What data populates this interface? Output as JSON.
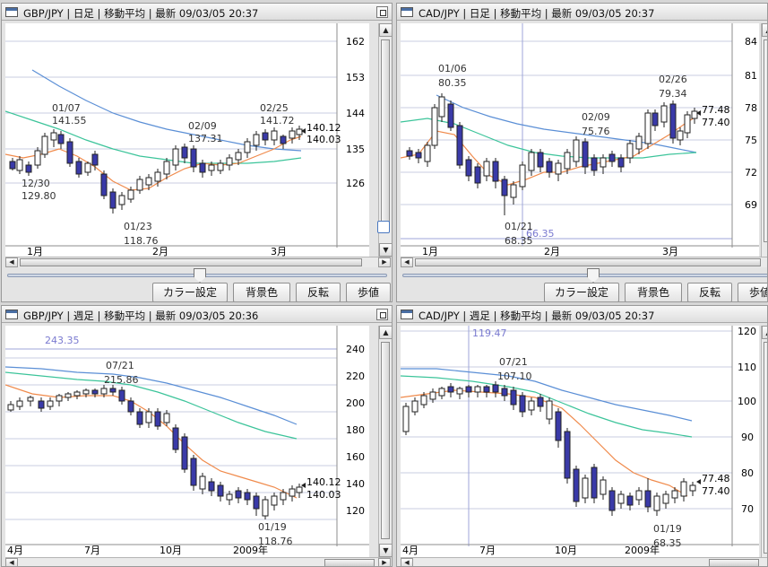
{
  "colors": {
    "ma_short": "#f08a4b",
    "ma_mid": "#3cc49a",
    "ma_long": "#5b8fd6",
    "grid": "#c8cde0",
    "candle_down": "#3a3aa8",
    "annotation": "#7a7ad0"
  },
  "icons": {
    "window": "window-icon",
    "maximize": "maximize-icon"
  },
  "toolbar": {
    "color_settings": "カラー設定",
    "background_color": "背景色",
    "invert": "反転",
    "step_value": "歩値"
  },
  "charts": [
    {
      "title": "GBP/JPY | 日足 | 移動平均 | 最新 09/03/05 20:37",
      "y_ticks": [
        "162",
        "153",
        "144",
        "135",
        "126"
      ],
      "x_ticks": [
        "1月",
        "2月",
        "3月"
      ],
      "annotations": [
        {
          "date": "01/07",
          "value": "141.55"
        },
        {
          "date": "12/30",
          "value": "129.80"
        },
        {
          "date": "01/23",
          "value": "118.76"
        },
        {
          "date": "02/09",
          "value": "137.31"
        },
        {
          "date": "02/25",
          "value": "141.72"
        }
      ],
      "last_prices": [
        "140.12",
        "140.03"
      ],
      "chart_data": {
        "type": "candlestick",
        "timeframe": "daily",
        "ylim": [
          115,
          166
        ],
        "indicators": [
          "moving-average-short",
          "moving-average-mid",
          "moving-average-long"
        ]
      }
    },
    {
      "title": "CAD/JPY | 日足 | 移動平均 | 最新 09/03/05 20:37",
      "y_ticks": [
        "84",
        "81",
        "78",
        "75",
        "72",
        "69"
      ],
      "x_ticks": [
        "1月",
        "2月",
        "3月"
      ],
      "annotations": [
        {
          "date": "01/06",
          "value": "80.35"
        },
        {
          "date": "02/09",
          "value": "75.76"
        },
        {
          "date": "02/26",
          "value": "79.34"
        },
        {
          "date": "01/21",
          "value": "68.35"
        }
      ],
      "cursor_value": "66.35",
      "last_prices": [
        "77.48",
        "77.40"
      ],
      "chart_data": {
        "type": "candlestick",
        "timeframe": "daily",
        "ylim": [
          66,
          85
        ],
        "indicators": [
          "moving-average-short",
          "moving-average-mid",
          "moving-average-long"
        ]
      }
    },
    {
      "title": "GBP/JPY | 週足 | 移動平均 | 最新 09/03/05 20:36",
      "y_ticks": [
        "240",
        "220",
        "200",
        "180",
        "160",
        "140",
        "120"
      ],
      "x_ticks": [
        "4月",
        "7月",
        "10月",
        "2009年"
      ],
      "annotations": [
        {
          "date": "07/21",
          "value": "215.86"
        },
        {
          "date": "01/19",
          "value": "118.76"
        }
      ],
      "cursor_value": "243.35",
      "last_prices": [
        "140.12",
        "140.03"
      ],
      "chart_data": {
        "type": "candlestick",
        "timeframe": "weekly",
        "ylim": [
          105,
          250
        ],
        "indicators": [
          "moving-average-short",
          "moving-average-mid",
          "moving-average-long"
        ]
      }
    },
    {
      "title": "CAD/JPY | 週足 | 移動平均 | 最新 09/03/05 20:37",
      "y_ticks": [
        "120",
        "110",
        "100",
        "90",
        "80",
        "70"
      ],
      "x_ticks": [
        "4月",
        "7月",
        "10月",
        "2009年"
      ],
      "annotations": [
        {
          "date": "07/21",
          "value": "107.10"
        },
        {
          "date": "01/19",
          "value": "68.35"
        }
      ],
      "cursor_value": "119.47",
      "last_prices": [
        "77.48",
        "77.40"
      ],
      "chart_data": {
        "type": "candlestick",
        "timeframe": "weekly",
        "ylim": [
          63,
          121
        ],
        "indicators": [
          "moving-average-short",
          "moving-average-mid",
          "moving-average-long"
        ]
      }
    }
  ]
}
